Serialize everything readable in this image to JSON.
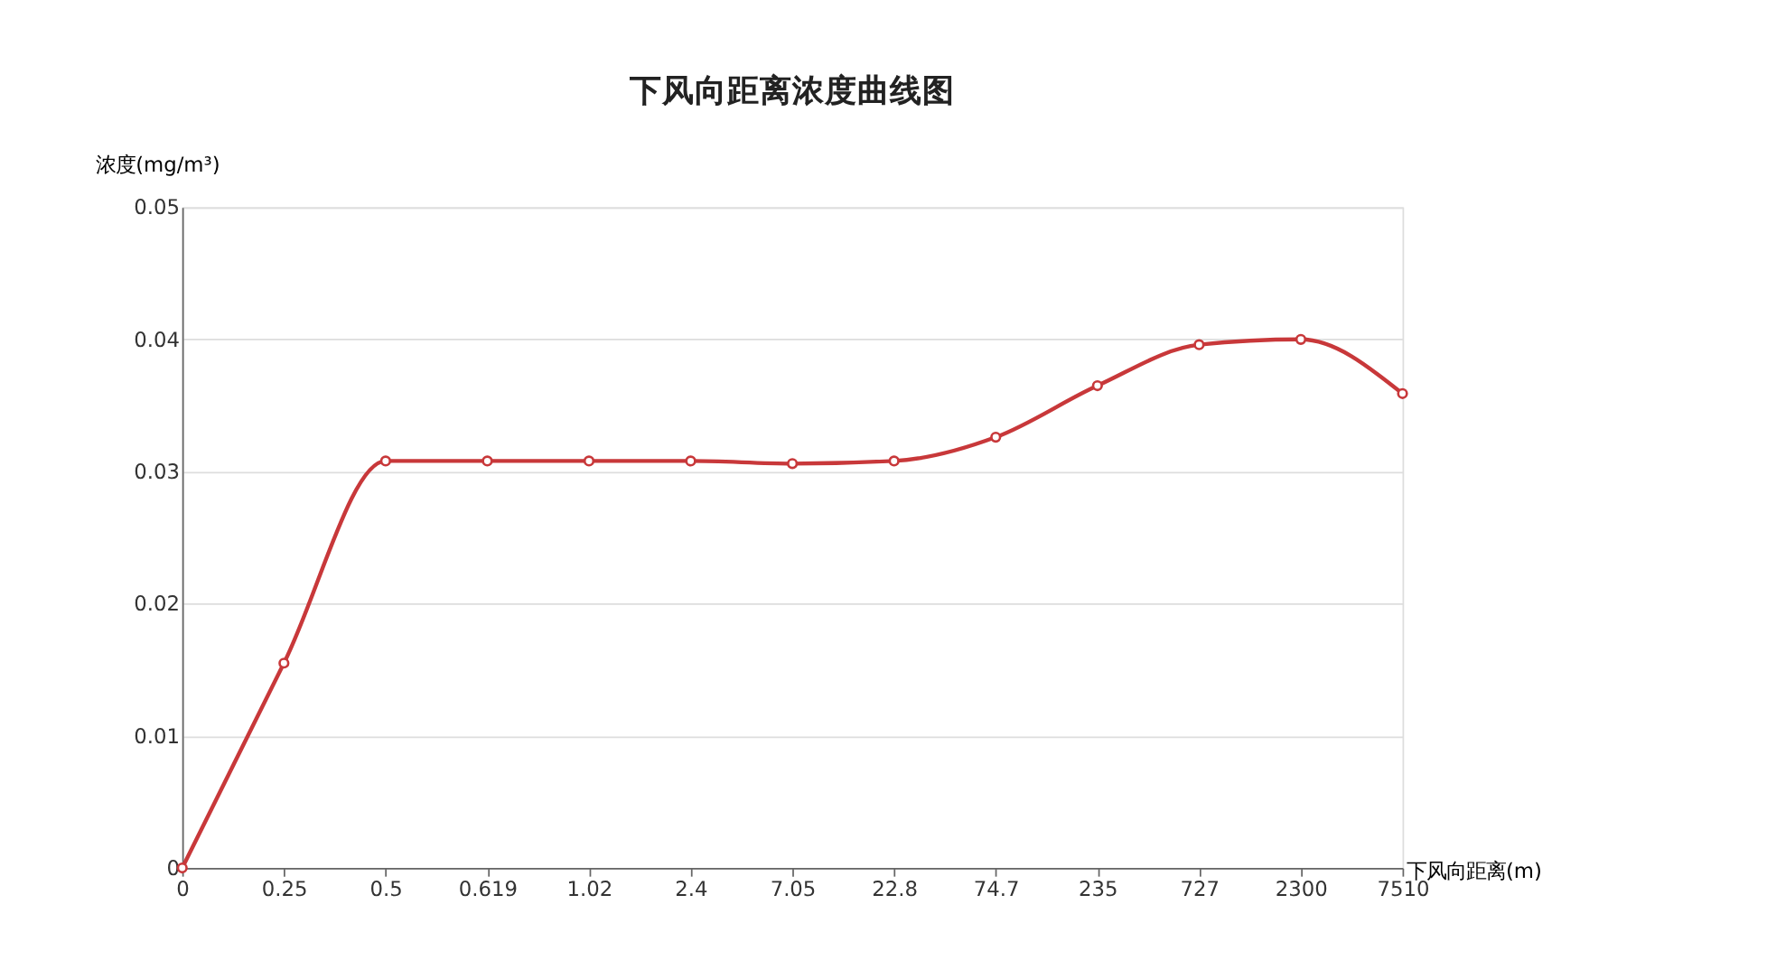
{
  "chart_data": {
    "type": "line",
    "title": "下风向距离浓度曲线图",
    "xlabel": "下风向距离(m)",
    "ylabel": "浓度(mg/m³)",
    "categories": [
      "0",
      "0.25",
      "0.5",
      "0.619",
      "1.02",
      "2.4",
      "7.05",
      "22.8",
      "74.7",
      "235",
      "727",
      "2300",
      "7510"
    ],
    "series": [
      {
        "color": "#c8383a",
        "values": [
          0,
          0.0155,
          0.0308,
          0.0308,
          0.0308,
          0.0308,
          0.0306,
          0.0308,
          0.0326,
          0.0365,
          0.0396,
          0.04,
          0.0359
        ]
      }
    ],
    "ylim": [
      0,
      0.05
    ],
    "yticks": [
      0,
      0.01,
      0.02,
      0.03,
      0.04,
      0.05
    ],
    "grid": "y",
    "marker": "circle",
    "line_style": "solid"
  }
}
